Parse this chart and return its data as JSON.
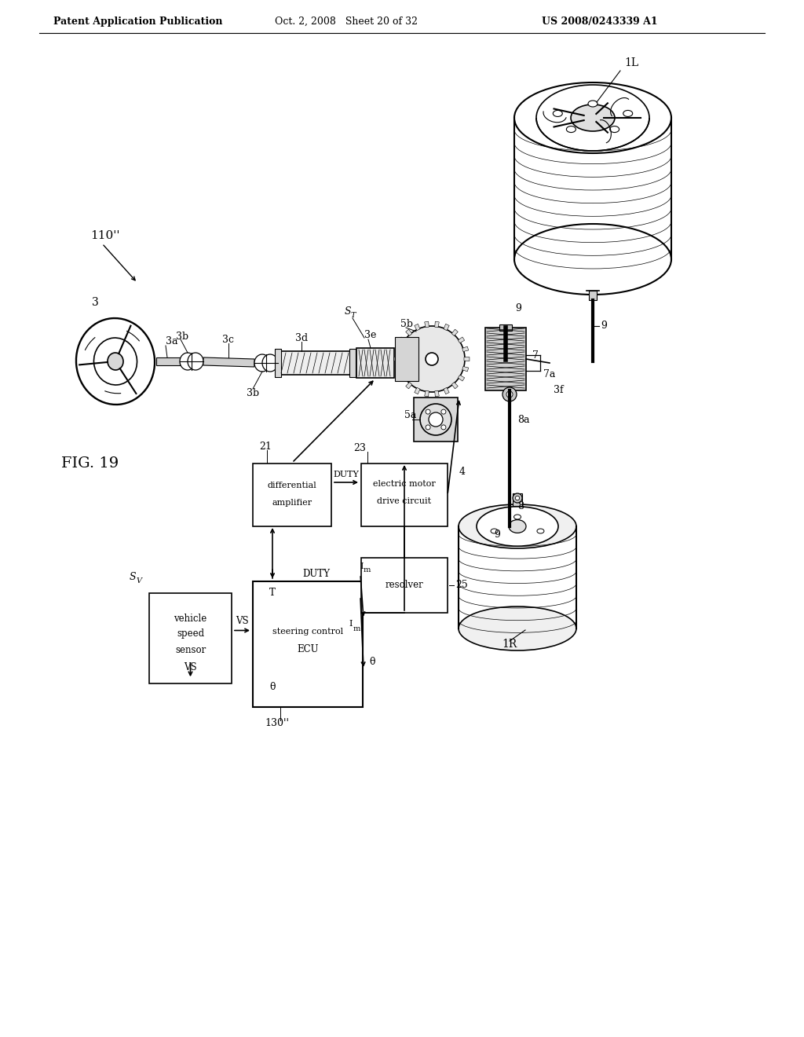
{
  "header_left": "Patent Application Publication",
  "header_mid": "Oct. 2, 2008   Sheet 20 of 32",
  "header_right": "US 2008/0243339 A1",
  "bg": "#ffffff",
  "lw": 1.2
}
